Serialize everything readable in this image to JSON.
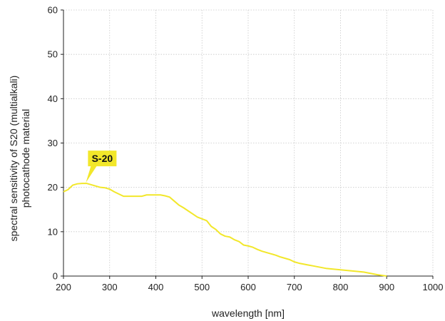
{
  "chart_data": {
    "type": "line",
    "title": "",
    "xlabel": "wavelength [nm]",
    "ylabel": [
      "spectral sensitivity of S20 (multialkali)",
      "photocathode material"
    ],
    "xlim": [
      200,
      1000
    ],
    "ylim": [
      0,
      60
    ],
    "x_ticks": [
      200,
      300,
      400,
      500,
      600,
      700,
      800,
      900,
      1000
    ],
    "y_ticks": [
      0,
      10,
      20,
      30,
      40,
      50,
      60
    ],
    "grid": true,
    "series": [
      {
        "name": "S-20",
        "color": "#f2e72a",
        "points": [
          [
            200,
            19.0
          ],
          [
            210,
            19.5
          ],
          [
            220,
            20.5
          ],
          [
            230,
            20.8
          ],
          [
            240,
            20.9
          ],
          [
            250,
            20.9
          ],
          [
            260,
            20.6
          ],
          [
            270,
            20.3
          ],
          [
            280,
            20.0
          ],
          [
            290,
            19.9
          ],
          [
            300,
            19.6
          ],
          [
            310,
            19.0
          ],
          [
            320,
            18.5
          ],
          [
            330,
            18.0
          ],
          [
            340,
            18.0
          ],
          [
            350,
            18.0
          ],
          [
            360,
            18.0
          ],
          [
            370,
            18.0
          ],
          [
            380,
            18.3
          ],
          [
            390,
            18.3
          ],
          [
            400,
            18.3
          ],
          [
            410,
            18.3
          ],
          [
            420,
            18.1
          ],
          [
            430,
            17.8
          ],
          [
            440,
            16.9
          ],
          [
            450,
            16.0
          ],
          [
            460,
            15.4
          ],
          [
            470,
            14.7
          ],
          [
            480,
            14.0
          ],
          [
            490,
            13.3
          ],
          [
            500,
            12.9
          ],
          [
            510,
            12.5
          ],
          [
            520,
            11.2
          ],
          [
            530,
            10.5
          ],
          [
            540,
            9.5
          ],
          [
            550,
            9.0
          ],
          [
            560,
            8.8
          ],
          [
            570,
            8.2
          ],
          [
            580,
            7.8
          ],
          [
            590,
            7.0
          ],
          [
            600,
            6.8
          ],
          [
            610,
            6.5
          ],
          [
            620,
            6.0
          ],
          [
            630,
            5.6
          ],
          [
            640,
            5.3
          ],
          [
            650,
            5.0
          ],
          [
            660,
            4.7
          ],
          [
            670,
            4.3
          ],
          [
            680,
            4.0
          ],
          [
            690,
            3.7
          ],
          [
            700,
            3.2
          ],
          [
            710,
            2.9
          ],
          [
            720,
            2.7
          ],
          [
            730,
            2.5
          ],
          [
            740,
            2.3
          ],
          [
            750,
            2.1
          ],
          [
            760,
            1.9
          ],
          [
            770,
            1.7
          ],
          [
            780,
            1.6
          ],
          [
            790,
            1.5
          ],
          [
            800,
            1.4
          ],
          [
            810,
            1.3
          ],
          [
            820,
            1.2
          ],
          [
            830,
            1.1
          ],
          [
            840,
            1.0
          ],
          [
            850,
            0.9
          ],
          [
            860,
            0.7
          ],
          [
            870,
            0.5
          ],
          [
            880,
            0.3
          ],
          [
            890,
            0.15
          ],
          [
            900,
            0.0
          ]
        ]
      }
    ],
    "annotation": {
      "text": "S-20",
      "x": 250,
      "y": 20.9,
      "background": "#f2e72a"
    }
  }
}
